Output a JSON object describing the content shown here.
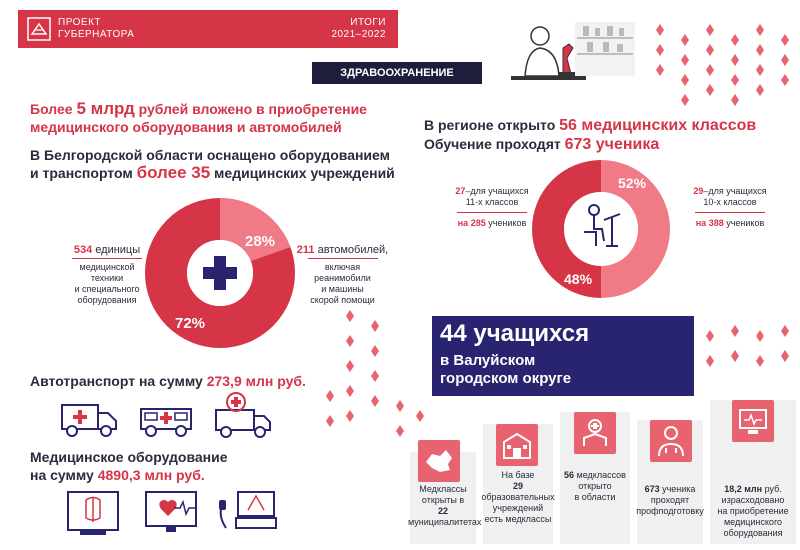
{
  "header": {
    "project_line1": "ПРОЕКТ",
    "project_line2": "ГУБЕРНАТОРА",
    "itogi": "ИТОГИ",
    "years": "2021–2022"
  },
  "section_badge": "ЗДРАВООХРАНЕНИЕ",
  "left": {
    "headline1_pre": "Более ",
    "headline1_num": "5 млрд",
    "headline1_post": " рублей вложено в приобретение",
    "headline1_line2": "медицинского оборудования и автомобилей",
    "headline2_line1": "В Белгородской области оснащено оборудованием",
    "headline2_pre": "и транспортом ",
    "headline2_num": "более 35",
    "headline2_post": " медицинских учреждений",
    "donut_top_pct": "28%",
    "donut_bottom_pct": "72%",
    "equip_num": "534",
    "equip_unit": " единицы",
    "equip_desc": [
      "медицинской",
      "техники",
      "и специального",
      "оборудования"
    ],
    "cars_num": "211",
    "cars_unit": " автомобилей,",
    "cars_desc": [
      "включая",
      "реанимобили",
      "и машины",
      "скорой помощи"
    ],
    "auto_pre": "Автотранспорт на сумму ",
    "auto_num": "273,9 млн руб.",
    "med_line1": "Медицинское оборудование",
    "med_pre": "на сумму ",
    "med_num": "4890,3 млн руб."
  },
  "right": {
    "classes_pre": "В регионе открыто ",
    "classes_num": "56 медицинских классов",
    "study_pre": "Обучение проходят ",
    "study_num": "673 ученика",
    "donut_top_pct": "52%",
    "donut_bottom_pct": "48%",
    "left_num": "27",
    "left_l1": "–для учащихся",
    "left_l2": "11-х классов",
    "left_num2": "на 285",
    "left_l3": " учеников",
    "right_num": "29",
    "right_l1": "–для учащихся",
    "right_l2": "10-х классов",
    "right_num2": "на 388",
    "right_l3": " учеников"
  },
  "banner": {
    "big": "44 учащихся",
    "sub1": "в Валуйском",
    "sub2": "городском округе"
  },
  "bottom_stats": [
    {
      "l1": "Медклассы",
      "l2": "открыты в",
      "num": "22",
      "l3": " муниципалитетах"
    },
    {
      "l1": "На базе",
      "num": "29",
      "l2": " образовательных",
      "l3": "учреждений",
      "l4": "есть медклассы"
    },
    {
      "num": "56",
      "l1": " медклассов",
      "l2": "открыто",
      "l3": "в области"
    },
    {
      "num": "673",
      "l1": " ученика",
      "l2": "проходят",
      "l3": "профподготовку"
    },
    {
      "num": "18,2 млн",
      "l1": " руб.",
      "l2": "израсходовано",
      "l3": "на приобретение",
      "l4": "медицинского",
      "l5": "оборудования"
    }
  ],
  "colors": {
    "accent": "#d63447",
    "dark": "#1e1e3c",
    "navy": "#282470",
    "pink": "#e8636f"
  }
}
